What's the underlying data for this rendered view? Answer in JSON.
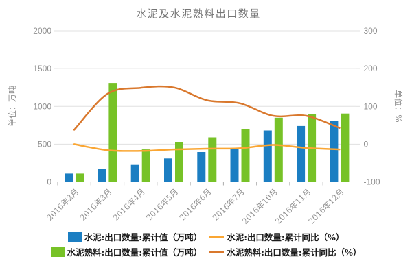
{
  "title": "水泥及水泥熟料出口数量",
  "colors": {
    "cement_bar": "#1b7ec2",
    "clinker_bar": "#77c227",
    "cement_line": "#faa633",
    "clinker_line": "#d9782d",
    "gridline": "#e0e0e0",
    "axis_line": "#ababab",
    "tick_label": "#8f8f8f",
    "title_text": "#757575"
  },
  "chart_data": {
    "type": "bar",
    "subtype": "grouped bars with two overlay smooth lines (dual y-axis combo)",
    "title": "水泥及水泥熟料出口数量",
    "categories": [
      "2016年2月",
      "2016年3月",
      "2016年4月",
      "2016年5月",
      "2016年6月",
      "2016年7月",
      "2016年10月",
      "2016年11月",
      "2016年12月"
    ],
    "series": [
      {
        "id": "cement_value",
        "name": "水泥:出口数量:累计值（万吨）",
        "type": "bar",
        "axis": "left",
        "color": "#1b7ec2",
        "values": [
          110,
          170,
          225,
          310,
          395,
          450,
          680,
          740,
          810
        ]
      },
      {
        "id": "cement_yoy",
        "name": "水泥:出口数量:累计同比（%）",
        "type": "line",
        "axis": "right",
        "color": "#faa633",
        "values": [
          0,
          -16,
          -18,
          -14,
          -12,
          -11,
          -2,
          -10,
          -14
        ]
      },
      {
        "id": "clinker_value",
        "name": "水泥熟料:出口数量:累计值（万吨）",
        "type": "bar",
        "axis": "left",
        "color": "#77c227",
        "values": [
          110,
          1310,
          430,
          525,
          590,
          700,
          850,
          900,
          905
        ]
      },
      {
        "id": "clinker_yoy",
        "name": "水泥熟料:出口数量:累计同比（%）",
        "type": "line",
        "axis": "right",
        "color": "#d9782d",
        "values": [
          38,
          133,
          149,
          150,
          116,
          108,
          75,
          75,
          43
        ]
      }
    ],
    "left_axis": {
      "name": "单位：万吨",
      "min": 0,
      "max": 2000,
      "ticks": [
        0,
        500,
        1000,
        1500,
        2000
      ]
    },
    "right_axis": {
      "name": "单位：%",
      "min": -100,
      "max": 300,
      "ticks": [
        -100,
        0,
        100,
        200,
        300
      ]
    },
    "grid": true,
    "legend_position": "bottom",
    "legend_rows": [
      [
        "cement_value",
        "cement_yoy"
      ],
      [
        "clinker_value",
        "clinker_yoy"
      ]
    ],
    "x_label_rotation": -45
  }
}
